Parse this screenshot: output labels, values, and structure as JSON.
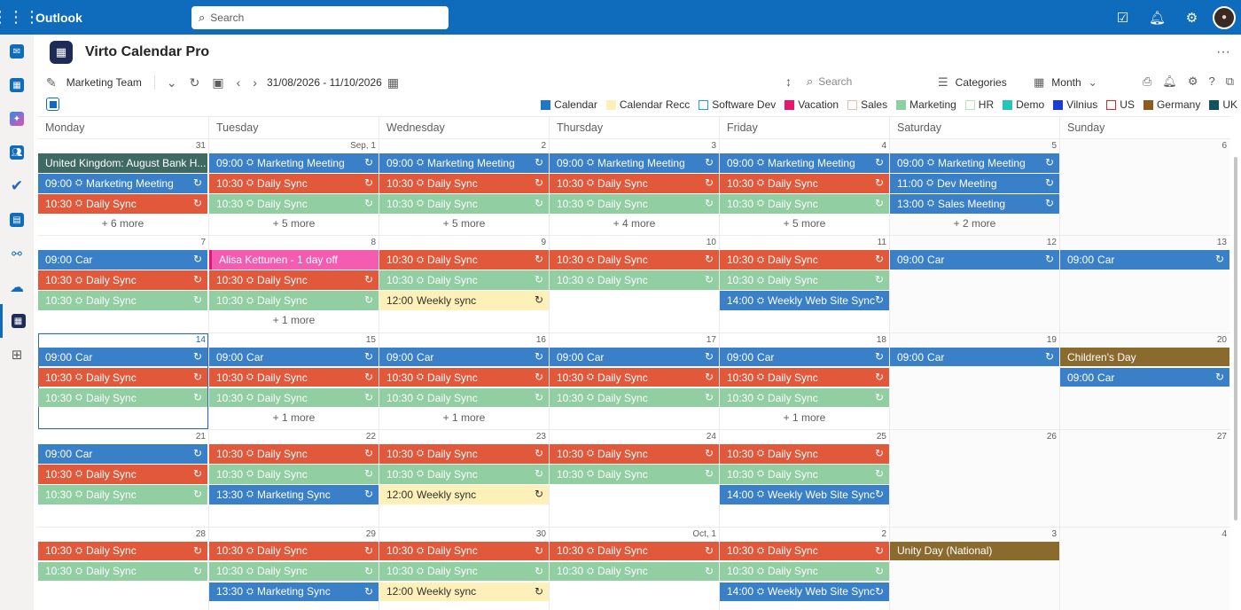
{
  "topbar": {
    "app_name": "Outlook",
    "search_placeholder": "Search"
  },
  "app": {
    "title": "Virto Calendar Pro",
    "more": "···"
  },
  "toolbar": {
    "calendar_name": "Marketing Team",
    "date_range": "31/08/2026 - 11/10/2026",
    "search_placeholder": "Search",
    "categories_label": "Categories",
    "view_label": "Month"
  },
  "legend": [
    {
      "label": "Calendar",
      "color": "#1f78c8",
      "style": "fill"
    },
    {
      "label": "Calendar Recc",
      "color": "#fdf0b8",
      "style": "fill"
    },
    {
      "label": "Software Dev",
      "color": "#1aa6d8",
      "style": "outline"
    },
    {
      "label": "Vacation",
      "color": "#e8176b",
      "style": "fill"
    },
    {
      "label": "Sales",
      "color": "#f4b8a8",
      "style": "outline"
    },
    {
      "label": "Marketing",
      "color": "#8fd0a0",
      "style": "fill"
    },
    {
      "label": "HR",
      "color": "#b7e3b8",
      "style": "outline"
    },
    {
      "label": "Demo",
      "color": "#23c6b8",
      "style": "fill"
    },
    {
      "label": "Vilnius",
      "color": "#1b3bd8",
      "style": "fill"
    },
    {
      "label": "US",
      "color": "#d8262c",
      "style": "outline"
    },
    {
      "label": "Germany",
      "color": "#8a5c1e",
      "style": "fill"
    },
    {
      "label": "UK",
      "color": "#11535a",
      "style": "fill"
    }
  ],
  "colors": {
    "blue": "#3a80c8",
    "red": "#e2583a",
    "green": "#91cfa2",
    "yellow": "#fdf0b8",
    "pink": "#f35cb0",
    "brown": "#8b6a2e",
    "uk": "#3e6a63"
  },
  "days_of_week": [
    "Monday",
    "Tuesday",
    "Wednesday",
    "Thursday",
    "Friday",
    "Saturday",
    "Sunday"
  ],
  "weeks": [
    {
      "days": [
        {
          "num": "31",
          "events": [
            {
              "title": "United Kingdom: August Bank H...",
              "color": "uk"
            },
            {
              "time": "09:00",
              "title": "Marketing Meeting",
              "color": "blue",
              "teams": true,
              "recurring": true
            },
            {
              "time": "10:30",
              "title": "Daily Sync",
              "color": "red",
              "teams": true,
              "recurring": true
            }
          ],
          "more": "+ 6 more"
        },
        {
          "num": "Sep, 1",
          "events": [
            {
              "time": "09:00",
              "title": "Marketing Meeting",
              "color": "blue",
              "teams": true,
              "recurring": true
            },
            {
              "time": "10:30",
              "title": "Daily Sync",
              "color": "red",
              "teams": true,
              "recurring": true
            },
            {
              "time": "10:30",
              "title": "Daily Sync",
              "color": "green",
              "teams": true,
              "recurring": true
            }
          ],
          "more": "+ 5 more"
        },
        {
          "num": "2",
          "events": [
            {
              "time": "09:00",
              "title": "Marketing Meeting",
              "color": "blue",
              "teams": true,
              "recurring": true
            },
            {
              "time": "10:30",
              "title": "Daily Sync",
              "color": "red",
              "teams": true,
              "recurring": true
            },
            {
              "time": "10:30",
              "title": "Daily Sync",
              "color": "green",
              "teams": true,
              "recurring": true
            }
          ],
          "more": "+ 5 more"
        },
        {
          "num": "3",
          "events": [
            {
              "time": "09:00",
              "title": "Marketing Meeting",
              "color": "blue",
              "teams": true,
              "recurring": true
            },
            {
              "time": "10:30",
              "title": "Daily Sync",
              "color": "red",
              "teams": true,
              "recurring": true
            },
            {
              "time": "10:30",
              "title": "Daily Sync",
              "color": "green",
              "teams": true,
              "recurring": true
            }
          ],
          "more": "+ 4 more"
        },
        {
          "num": "4",
          "events": [
            {
              "time": "09:00",
              "title": "Marketing Meeting",
              "color": "blue",
              "teams": true,
              "recurring": true
            },
            {
              "time": "10:30",
              "title": "Daily Sync",
              "color": "red",
              "teams": true,
              "recurring": true
            },
            {
              "time": "10:30",
              "title": "Daily Sync",
              "color": "green",
              "teams": true,
              "recurring": true
            }
          ],
          "more": "+ 5 more"
        },
        {
          "num": "5",
          "weekend": true,
          "events": [
            {
              "time": "09:00",
              "title": "Marketing Meeting",
              "color": "blue",
              "teams": true,
              "recurring": true
            },
            {
              "time": "11:00",
              "title": "Dev Meeting",
              "color": "blue",
              "teams": true,
              "recurring": true
            },
            {
              "time": "13:00",
              "title": "Sales Meeting",
              "color": "blue",
              "teams": true,
              "recurring": true
            }
          ],
          "more": "+ 2 more"
        },
        {
          "num": "6",
          "weekend": true,
          "events": []
        }
      ]
    },
    {
      "days": [
        {
          "num": "7",
          "events": [
            {
              "time": "09:00",
              "title": "Car",
              "color": "blue",
              "recurring": true
            },
            {
              "time": "10:30",
              "title": "Daily Sync",
              "color": "red",
              "teams": true,
              "recurring": true
            },
            {
              "time": "10:30",
              "title": "Daily Sync",
              "color": "green",
              "teams": true,
              "recurring": true
            }
          ]
        },
        {
          "num": "8",
          "events": [
            {
              "title": "Alisa Kettunen - 1 day off",
              "color": "pink"
            },
            {
              "time": "10:30",
              "title": "Daily Sync",
              "color": "red",
              "teams": true,
              "recurring": true
            },
            {
              "time": "10:30",
              "title": "Daily Sync",
              "color": "green",
              "teams": true,
              "recurring": true
            }
          ],
          "more": "+ 1 more"
        },
        {
          "num": "9",
          "events": [
            {
              "time": "10:30",
              "title": "Daily Sync",
              "color": "red",
              "teams": true,
              "recurring": true
            },
            {
              "time": "10:30",
              "title": "Daily Sync",
              "color": "green",
              "teams": true,
              "recurring": true
            },
            {
              "time": "12:00",
              "title": "Weekly sync",
              "color": "yellow",
              "recurring": true
            }
          ]
        },
        {
          "num": "10",
          "events": [
            {
              "time": "10:30",
              "title": "Daily Sync",
              "color": "red",
              "teams": true,
              "recurring": true
            },
            {
              "time": "10:30",
              "title": "Daily Sync",
              "color": "green",
              "teams": true,
              "recurring": true
            }
          ]
        },
        {
          "num": "11",
          "events": [
            {
              "time": "10:30",
              "title": "Daily Sync",
              "color": "red",
              "teams": true,
              "recurring": true
            },
            {
              "time": "10:30",
              "title": "Daily Sync",
              "color": "green",
              "teams": true,
              "recurring": true
            },
            {
              "time": "14:00",
              "title": "Weekly Web Site Sync",
              "color": "blue",
              "teams": true,
              "recurring": true
            }
          ]
        },
        {
          "num": "12",
          "weekend": true,
          "events": [
            {
              "time": "09:00",
              "title": "Car",
              "color": "blue",
              "recurring": true
            }
          ]
        },
        {
          "num": "13",
          "weekend": true,
          "events": [
            {
              "time": "09:00",
              "title": "Car",
              "color": "blue",
              "recurring": true
            }
          ]
        }
      ]
    },
    {
      "days": [
        {
          "num": "14",
          "today": true,
          "events": [
            {
              "time": "09:00",
              "title": "Car",
              "color": "blue",
              "recurring": true
            },
            {
              "time": "10:30",
              "title": "Daily Sync",
              "color": "red",
              "teams": true,
              "recurring": true
            },
            {
              "time": "10:30",
              "title": "Daily Sync",
              "color": "green",
              "teams": true,
              "recurring": true
            }
          ]
        },
        {
          "num": "15",
          "events": [
            {
              "time": "09:00",
              "title": "Car",
              "color": "blue",
              "recurring": true
            },
            {
              "time": "10:30",
              "title": "Daily Sync",
              "color": "red",
              "teams": true,
              "recurring": true
            },
            {
              "time": "10:30",
              "title": "Daily Sync",
              "color": "green",
              "teams": true,
              "recurring": true
            }
          ],
          "more": "+ 1 more"
        },
        {
          "num": "16",
          "events": [
            {
              "time": "09:00",
              "title": "Car",
              "color": "blue",
              "recurring": true
            },
            {
              "time": "10:30",
              "title": "Daily Sync",
              "color": "red",
              "teams": true,
              "recurring": true
            },
            {
              "time": "10:30",
              "title": "Daily Sync",
              "color": "green",
              "teams": true,
              "recurring": true
            }
          ],
          "more": "+ 1 more"
        },
        {
          "num": "17",
          "events": [
            {
              "time": "09:00",
              "title": "Car",
              "color": "blue",
              "recurring": true
            },
            {
              "time": "10:30",
              "title": "Daily Sync",
              "color": "red",
              "teams": true,
              "recurring": true
            },
            {
              "time": "10:30",
              "title": "Daily Sync",
              "color": "green",
              "teams": true,
              "recurring": true
            }
          ]
        },
        {
          "num": "18",
          "events": [
            {
              "time": "09:00",
              "title": "Car",
              "color": "blue",
              "recurring": true
            },
            {
              "time": "10:30",
              "title": "Daily Sync",
              "color": "red",
              "teams": true,
              "recurring": true
            },
            {
              "time": "10:30",
              "title": "Daily Sync",
              "color": "green",
              "teams": true,
              "recurring": true
            }
          ],
          "more": "+ 1 more"
        },
        {
          "num": "19",
          "weekend": true,
          "events": [
            {
              "time": "09:00",
              "title": "Car",
              "color": "blue",
              "recurring": true
            }
          ]
        },
        {
          "num": "20",
          "weekend": true,
          "events": [
            {
              "title": "Children's Day",
              "color": "brown"
            },
            {
              "time": "09:00",
              "title": "Car",
              "color": "blue",
              "recurring": true
            }
          ]
        }
      ]
    },
    {
      "days": [
        {
          "num": "21",
          "events": [
            {
              "time": "09:00",
              "title": "Car",
              "color": "blue",
              "recurring": true
            },
            {
              "time": "10:30",
              "title": "Daily Sync",
              "color": "red",
              "teams": true,
              "recurring": true
            },
            {
              "time": "10:30",
              "title": "Daily Sync",
              "color": "green",
              "teams": true,
              "recurring": true
            }
          ]
        },
        {
          "num": "22",
          "events": [
            {
              "time": "10:30",
              "title": "Daily Sync",
              "color": "red",
              "teams": true,
              "recurring": true
            },
            {
              "time": "10:30",
              "title": "Daily Sync",
              "color": "green",
              "teams": true,
              "recurring": true
            },
            {
              "time": "13:30",
              "title": "Marketing Sync",
              "color": "blue",
              "teams": true,
              "recurring": true
            }
          ]
        },
        {
          "num": "23",
          "events": [
            {
              "time": "10:30",
              "title": "Daily Sync",
              "color": "red",
              "teams": true,
              "recurring": true
            },
            {
              "time": "10:30",
              "title": "Daily Sync",
              "color": "green",
              "teams": true,
              "recurring": true
            },
            {
              "time": "12:00",
              "title": "Weekly sync",
              "color": "yellow",
              "recurring": true
            }
          ]
        },
        {
          "num": "24",
          "events": [
            {
              "time": "10:30",
              "title": "Daily Sync",
              "color": "red",
              "teams": true,
              "recurring": true
            },
            {
              "time": "10:30",
              "title": "Daily Sync",
              "color": "green",
              "teams": true,
              "recurring": true
            }
          ]
        },
        {
          "num": "25",
          "events": [
            {
              "time": "10:30",
              "title": "Daily Sync",
              "color": "red",
              "teams": true,
              "recurring": true
            },
            {
              "time": "10:30",
              "title": "Daily Sync",
              "color": "green",
              "teams": true,
              "recurring": true
            },
            {
              "time": "14:00",
              "title": "Weekly Web Site Sync",
              "color": "blue",
              "teams": true,
              "recurring": true
            }
          ]
        },
        {
          "num": "26",
          "weekend": true,
          "events": []
        },
        {
          "num": "27",
          "weekend": true,
          "events": []
        }
      ]
    },
    {
      "days": [
        {
          "num": "28",
          "events": [
            {
              "time": "10:30",
              "title": "Daily Sync",
              "color": "red",
              "teams": true,
              "recurring": true
            },
            {
              "time": "10:30",
              "title": "Daily Sync",
              "color": "green",
              "teams": true,
              "recurring": true
            }
          ]
        },
        {
          "num": "29",
          "events": [
            {
              "time": "10:30",
              "title": "Daily Sync",
              "color": "red",
              "teams": true,
              "recurring": true
            },
            {
              "time": "10:30",
              "title": "Daily Sync",
              "color": "green",
              "teams": true,
              "recurring": true
            },
            {
              "time": "13:30",
              "title": "Marketing Sync",
              "color": "blue",
              "teams": true,
              "recurring": true
            }
          ]
        },
        {
          "num": "30",
          "events": [
            {
              "time": "10:30",
              "title": "Daily Sync",
              "color": "red",
              "teams": true,
              "recurring": true
            },
            {
              "time": "10:30",
              "title": "Daily Sync",
              "color": "green",
              "teams": true,
              "recurring": true
            },
            {
              "time": "12:00",
              "title": "Weekly sync",
              "color": "yellow",
              "recurring": true
            }
          ]
        },
        {
          "num": "Oct, 1",
          "events": [
            {
              "time": "10:30",
              "title": "Daily Sync",
              "color": "red",
              "teams": true,
              "recurring": true
            },
            {
              "time": "10:30",
              "title": "Daily Sync",
              "color": "green",
              "teams": true,
              "recurring": true
            }
          ]
        },
        {
          "num": "2",
          "events": [
            {
              "time": "10:30",
              "title": "Daily Sync",
              "color": "red",
              "teams": true,
              "recurring": true
            },
            {
              "time": "10:30",
              "title": "Daily Sync",
              "color": "green",
              "teams": true,
              "recurring": true
            },
            {
              "time": "14:00",
              "title": "Weekly Web Site Sync",
              "color": "blue",
              "teams": true,
              "recurring": true
            }
          ]
        },
        {
          "num": "3",
          "weekend": true,
          "events": [
            {
              "title": "Unity Day (National)",
              "color": "brown"
            }
          ]
        },
        {
          "num": "4",
          "weekend": true,
          "events": []
        }
      ]
    }
  ]
}
